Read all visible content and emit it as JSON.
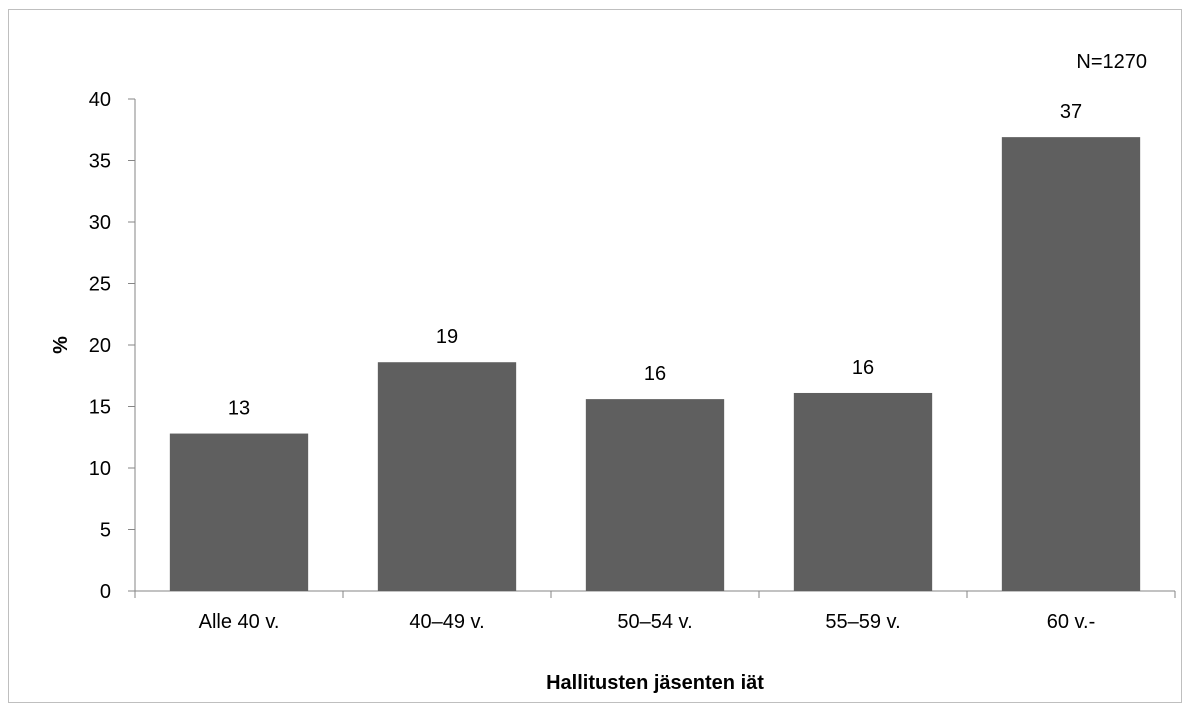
{
  "chart_data": {
    "type": "bar",
    "categories": [
      "Alle 40 v.",
      "40–49 v.",
      "50–54 v.",
      "55–59 v.",
      "60 v.-"
    ],
    "values": [
      12.8,
      18.6,
      15.6,
      16.1,
      36.9
    ],
    "data_labels": [
      "13",
      "19",
      "16",
      "16",
      "37"
    ],
    "xlabel": "Hallitusten jäsenten iät",
    "ylabel": "%",
    "ylim": [
      0,
      40
    ],
    "yticks": [
      0,
      5,
      10,
      15,
      20,
      25,
      30,
      35,
      40
    ],
    "annotation": "N=1270",
    "grid": false,
    "legend": "none",
    "bar_color": "#5f5f5f"
  }
}
